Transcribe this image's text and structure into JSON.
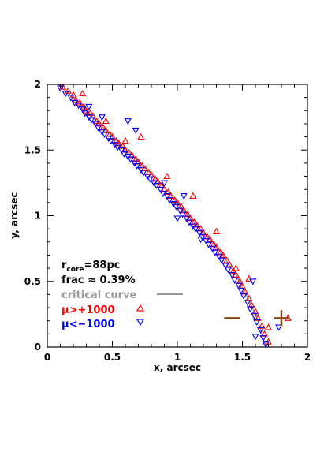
{
  "chart_data": {
    "type": "scatter",
    "title": "",
    "xlabel": "x, arcsec",
    "ylabel": "y, arcsec",
    "xlim": [
      0,
      2
    ],
    "ylim": [
      0,
      2
    ],
    "x_ticks": [
      "0",
      "0.5",
      "1",
      "1.5",
      "2"
    ],
    "y_ticks": [
      "0",
      "0.5",
      "1",
      "1.5",
      "2"
    ],
    "x_tick_values": [
      0,
      0.5,
      1,
      1.5,
      2
    ],
    "y_tick_values": [
      0,
      0.5,
      1,
      1.5,
      2
    ],
    "grid": false,
    "legend": {
      "placement": "bottom-left",
      "r_core": {
        "prefix": "r",
        "sub": "core",
        "value": "=88pc"
      },
      "frac": "frac ≈ 0.39%",
      "critical_curve": "critical curve",
      "mu_pos": "μ>+1000",
      "mu_neg": "μ<−1000"
    },
    "colors": {
      "critical_curve": "#999999",
      "mu_pos": "#ff0000",
      "mu_neg": "#0000ff",
      "markers": "#8b4513"
    },
    "series": [
      {
        "name": "critical curve",
        "kind": "curve",
        "points": [
          [
            0.08,
            2.0
          ],
          [
            0.2,
            1.9
          ],
          [
            0.35,
            1.75
          ],
          [
            0.5,
            1.6
          ],
          [
            0.65,
            1.46
          ],
          [
            0.8,
            1.32
          ],
          [
            0.95,
            1.16
          ],
          [
            1.1,
            0.98
          ],
          [
            1.25,
            0.82
          ],
          [
            1.35,
            0.7
          ],
          [
            1.45,
            0.55
          ],
          [
            1.55,
            0.36
          ],
          [
            1.62,
            0.2
          ],
          [
            1.68,
            0.0
          ]
        ]
      },
      {
        "name": "μ>+1000",
        "marker": "triangle-up",
        "points": [
          [
            0.12,
            1.98
          ],
          [
            0.16,
            1.95
          ],
          [
            0.2,
            1.92
          ],
          [
            0.22,
            1.88
          ],
          [
            0.25,
            1.86
          ],
          [
            0.28,
            1.83
          ],
          [
            0.3,
            1.8
          ],
          [
            0.33,
            1.78
          ],
          [
            0.35,
            1.76
          ],
          [
            0.38,
            1.72
          ],
          [
            0.4,
            1.7
          ],
          [
            0.43,
            1.67
          ],
          [
            0.45,
            1.65
          ],
          [
            0.48,
            1.62
          ],
          [
            0.5,
            1.6
          ],
          [
            0.53,
            1.57
          ],
          [
            0.55,
            1.55
          ],
          [
            0.58,
            1.53
          ],
          [
            0.6,
            1.5
          ],
          [
            0.63,
            1.48
          ],
          [
            0.65,
            1.46
          ],
          [
            0.68,
            1.43
          ],
          [
            0.7,
            1.41
          ],
          [
            0.73,
            1.38
          ],
          [
            0.75,
            1.36
          ],
          [
            0.78,
            1.33
          ],
          [
            0.8,
            1.31
          ],
          [
            0.83,
            1.28
          ],
          [
            0.85,
            1.26
          ],
          [
            0.88,
            1.23
          ],
          [
            0.9,
            1.2
          ],
          [
            0.93,
            1.18
          ],
          [
            0.95,
            1.15
          ],
          [
            0.98,
            1.12
          ],
          [
            1.0,
            1.1
          ],
          [
            1.03,
            1.07
          ],
          [
            1.05,
            1.04
          ],
          [
            1.08,
            1.01
          ],
          [
            1.1,
            0.98
          ],
          [
            1.13,
            0.95
          ],
          [
            1.15,
            0.93
          ],
          [
            1.18,
            0.9
          ],
          [
            1.2,
            0.87
          ],
          [
            1.23,
            0.84
          ],
          [
            1.25,
            0.82
          ],
          [
            1.28,
            0.78
          ],
          [
            1.3,
            0.76
          ],
          [
            1.33,
            0.72
          ],
          [
            1.35,
            0.7
          ],
          [
            1.38,
            0.66
          ],
          [
            1.4,
            0.63
          ],
          [
            1.43,
            0.58
          ],
          [
            1.45,
            0.55
          ],
          [
            1.48,
            0.5
          ],
          [
            1.5,
            0.46
          ],
          [
            1.52,
            0.42
          ],
          [
            1.55,
            0.37
          ],
          [
            1.57,
            0.32
          ],
          [
            1.6,
            0.27
          ],
          [
            1.62,
            0.22
          ],
          [
            1.65,
            0.16
          ],
          [
            1.67,
            0.1
          ],
          [
            1.7,
            0.04
          ],
          [
            0.27,
            1.93
          ],
          [
            0.45,
            1.72
          ],
          [
            0.6,
            1.57
          ],
          [
            0.72,
            1.6
          ],
          [
            0.92,
            1.3
          ],
          [
            1.12,
            1.15
          ],
          [
            1.3,
            0.88
          ],
          [
            1.55,
            0.52
          ],
          [
            1.85,
            0.22
          ],
          [
            1.7,
            0.15
          ],
          [
            1.45,
            0.6
          ]
        ]
      },
      {
        "name": "μ<−1000",
        "marker": "triangle-down",
        "points": [
          [
            0.1,
            1.97
          ],
          [
            0.14,
            1.93
          ],
          [
            0.18,
            1.9
          ],
          [
            0.21,
            1.86
          ],
          [
            0.24,
            1.84
          ],
          [
            0.27,
            1.81
          ],
          [
            0.29,
            1.78
          ],
          [
            0.32,
            1.75
          ],
          [
            0.34,
            1.73
          ],
          [
            0.37,
            1.7
          ],
          [
            0.39,
            1.67
          ],
          [
            0.42,
            1.64
          ],
          [
            0.44,
            1.62
          ],
          [
            0.47,
            1.59
          ],
          [
            0.49,
            1.57
          ],
          [
            0.52,
            1.54
          ],
          [
            0.54,
            1.52
          ],
          [
            0.57,
            1.5
          ],
          [
            0.59,
            1.47
          ],
          [
            0.62,
            1.45
          ],
          [
            0.64,
            1.43
          ],
          [
            0.67,
            1.4
          ],
          [
            0.69,
            1.38
          ],
          [
            0.72,
            1.35
          ],
          [
            0.74,
            1.33
          ],
          [
            0.77,
            1.3
          ],
          [
            0.79,
            1.28
          ],
          [
            0.82,
            1.25
          ],
          [
            0.84,
            1.23
          ],
          [
            0.87,
            1.2
          ],
          [
            0.89,
            1.17
          ],
          [
            0.92,
            1.15
          ],
          [
            0.94,
            1.12
          ],
          [
            0.97,
            1.09
          ],
          [
            0.99,
            1.07
          ],
          [
            1.02,
            1.04
          ],
          [
            1.04,
            1.01
          ],
          [
            1.07,
            0.98
          ],
          [
            1.09,
            0.95
          ],
          [
            1.12,
            0.92
          ],
          [
            1.14,
            0.9
          ],
          [
            1.17,
            0.87
          ],
          [
            1.19,
            0.84
          ],
          [
            1.22,
            0.81
          ],
          [
            1.24,
            0.78
          ],
          [
            1.27,
            0.75
          ],
          [
            1.29,
            0.72
          ],
          [
            1.32,
            0.69
          ],
          [
            1.34,
            0.66
          ],
          [
            1.37,
            0.62
          ],
          [
            1.39,
            0.59
          ],
          [
            1.42,
            0.55
          ],
          [
            1.44,
            0.51
          ],
          [
            1.47,
            0.47
          ],
          [
            1.49,
            0.43
          ],
          [
            1.51,
            0.39
          ],
          [
            1.54,
            0.34
          ],
          [
            1.56,
            0.29
          ],
          [
            1.59,
            0.24
          ],
          [
            1.61,
            0.19
          ],
          [
            1.64,
            0.13
          ],
          [
            1.66,
            0.07
          ],
          [
            1.68,
            0.02
          ],
          [
            0.32,
            1.83
          ],
          [
            0.42,
            1.75
          ],
          [
            0.62,
            1.72
          ],
          [
            0.68,
            1.65
          ],
          [
            0.9,
            1.25
          ],
          [
            1.05,
            1.15
          ],
          [
            1.0,
            0.98
          ],
          [
            1.18,
            0.82
          ],
          [
            1.58,
            0.5
          ],
          [
            1.78,
            0.15
          ],
          [
            1.6,
            0.08
          ]
        ]
      }
    ],
    "markers": [
      {
        "name": "minus",
        "x": 1.42,
        "y": 0.22
      },
      {
        "name": "plus",
        "x": 1.8,
        "y": 0.22
      }
    ]
  }
}
